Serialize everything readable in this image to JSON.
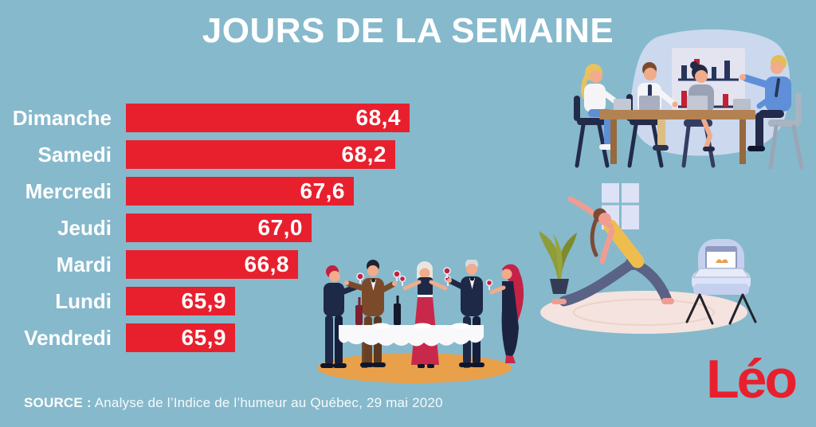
{
  "title": "JOURS DE LA SEMAINE",
  "chart_data": {
    "type": "bar",
    "orientation": "horizontal",
    "title": "JOURS DE LA SEMAINE",
    "categories": [
      "Dimanche",
      "Samedi",
      "Mercredi",
      "Jeudi",
      "Mardi",
      "Lundi",
      "Vendredi"
    ],
    "values": [
      68.4,
      68.2,
      67.6,
      67.0,
      66.8,
      65.9,
      65.9
    ],
    "value_labels": [
      "68,4",
      "68,2",
      "67,6",
      "67,0",
      "66,8",
      "65,9",
      "65,9"
    ],
    "xlim": [
      64.34,
      68.4
    ],
    "bar_color": "#e8202e",
    "text_color": "#ffffff",
    "grid": false,
    "legend": false
  },
  "source": {
    "prefix": "SOURCE :",
    "text": "Analyse de l’Indice de l’humeur au Québec, 29 mai 2020"
  },
  "logo": {
    "text": "Léo",
    "color": "#e8202e"
  },
  "colors": {
    "background": "#86b9cc",
    "bar_red": "#e8202e",
    "white": "#ffffff"
  },
  "illustrations": {
    "meeting": "four-people-meeting-at-table-with-bar-chart-board",
    "yoga": "woman-doing-yoga-pose-with-laptop-tutorial-on-armchair",
    "dinner": "five-people-dinner-party-with-wine-glasses"
  }
}
